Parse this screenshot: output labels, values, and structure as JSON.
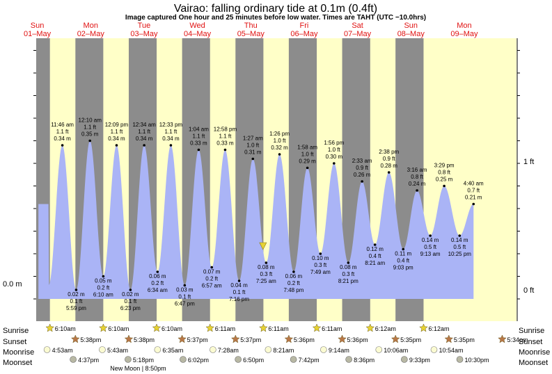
{
  "title": "Vairao: falling  ordinary tide at 0.1m (0.4ft)",
  "subtitle": "Image captured One hour and 25 minutes before low water. Times are TAHT (UTC −10.0hrs)",
  "days": [
    {
      "dow": "Sun",
      "date": "01–May"
    },
    {
      "dow": "Mon",
      "date": "02–May"
    },
    {
      "dow": "Tue",
      "date": "03–May"
    },
    {
      "dow": "Wed",
      "date": "04–May"
    },
    {
      "dow": "Thu",
      "date": "05–May"
    },
    {
      "dow": "Fri",
      "date": "06–May"
    },
    {
      "dow": "Sat",
      "date": "07–May"
    },
    {
      "dow": "Sun",
      "date": "08–May"
    },
    {
      "dow": "Mon",
      "date": "09–May"
    }
  ],
  "axis": {
    "left_label": "0.0 m",
    "right_labels": [
      "1 ft",
      "0 ft"
    ]
  },
  "chart_data": {
    "type": "area",
    "x_unit": "hours from 00:00 Sun 01-May (TAHT)",
    "y_unit": "m",
    "current_level": {
      "time": "falling",
      "height_m": 0.1
    },
    "extremes": [
      {
        "kind": "high",
        "time": "11:46 am",
        "ft": "1.1 ft",
        "m": "0.34 m",
        "t": 11.77,
        "h": 0.34
      },
      {
        "kind": "low",
        "time": "5:59 pm",
        "ft": "0.1 ft",
        "m": "0.02 m",
        "t": 17.98,
        "h": 0.02
      },
      {
        "kind": "high",
        "time": "12:10 am",
        "ft": "1.1 ft",
        "m": "0.35 m",
        "t": 24.17,
        "h": 0.35
      },
      {
        "kind": "low",
        "time": "6:10 am",
        "ft": "0.2 ft",
        "m": "0.05 m",
        "t": 30.17,
        "h": 0.05
      },
      {
        "kind": "high",
        "time": "12:09 pm",
        "ft": "1.1 ft",
        "m": "0.34 m",
        "t": 36.15,
        "h": 0.34
      },
      {
        "kind": "low",
        "time": "6:23 pm",
        "ft": "0.1 ft",
        "m": "0.02 m",
        "t": 42.38,
        "h": 0.02
      },
      {
        "kind": "high",
        "time": "12:34 am",
        "ft": "1.1 ft",
        "m": "0.34 m",
        "t": 48.57,
        "h": 0.34
      },
      {
        "kind": "low",
        "time": "6:34 am",
        "ft": "0.2 ft",
        "m": "0.06 m",
        "t": 54.57,
        "h": 0.06
      },
      {
        "kind": "high",
        "time": "12:33 pm",
        "ft": "1.1 ft",
        "m": "0.34 m",
        "t": 60.55,
        "h": 0.34
      },
      {
        "kind": "low",
        "time": "6:47 pm",
        "ft": "0.1 ft",
        "m": "0.03 m",
        "t": 66.78,
        "h": 0.03
      },
      {
        "kind": "high",
        "time": "1:04 am",
        "ft": "1.1 ft",
        "m": "0.33 m",
        "t": 73.07,
        "h": 0.33
      },
      {
        "kind": "low",
        "time": "6:57 am",
        "ft": "0.2 ft",
        "m": "0.07 m",
        "t": 78.95,
        "h": 0.07
      },
      {
        "kind": "high",
        "time": "12:58 pm",
        "ft": "1.1 ft",
        "m": "0.33 m",
        "t": 84.97,
        "h": 0.33
      },
      {
        "kind": "low",
        "time": "7:16 pm",
        "ft": "0.1 ft",
        "m": "0.04 m",
        "t": 91.27,
        "h": 0.04
      },
      {
        "kind": "high",
        "time": "1:27 am",
        "ft": "1.0 ft",
        "m": "0.31 m",
        "t": 97.45,
        "h": 0.31
      },
      {
        "kind": "low",
        "time": "7:25 am",
        "ft": "0.3 ft",
        "m": "0.08 m",
        "t": 103.42,
        "h": 0.08
      },
      {
        "kind": "high",
        "time": "1:26 pm",
        "ft": "1.0 ft",
        "m": "0.32 m",
        "t": 109.43,
        "h": 0.32
      },
      {
        "kind": "low",
        "time": "7:48 pm",
        "ft": "0.2 ft",
        "m": "0.06 m",
        "t": 115.8,
        "h": 0.06
      },
      {
        "kind": "high",
        "time": "1:58 am",
        "ft": "1.0 ft",
        "m": "0.29 m",
        "t": 121.97,
        "h": 0.29
      },
      {
        "kind": "low",
        "time": "7:49 am",
        "ft": "0.3 ft",
        "m": "0.10 m",
        "t": 127.82,
        "h": 0.1
      },
      {
        "kind": "high",
        "time": "1:56 pm",
        "ft": "1.0 ft",
        "m": "0.30 m",
        "t": 133.93,
        "h": 0.3
      },
      {
        "kind": "low",
        "time": "8:21 pm",
        "ft": "0.3 ft",
        "m": "0.08 m",
        "t": 140.35,
        "h": 0.08
      },
      {
        "kind": "high",
        "time": "2:33 am",
        "ft": "0.9 ft",
        "m": "0.26 m",
        "t": 146.55,
        "h": 0.26
      },
      {
        "kind": "low",
        "time": "8:21 am",
        "ft": "0.4 ft",
        "m": "0.12 m",
        "t": 152.35,
        "h": 0.12
      },
      {
        "kind": "high",
        "time": "2:38 pm",
        "ft": "0.9 ft",
        "m": "0.28 m",
        "t": 158.63,
        "h": 0.28
      },
      {
        "kind": "low",
        "time": "9:03 pm",
        "ft": "0.4 ft",
        "m": "0.11 m",
        "t": 165.05,
        "h": 0.11
      },
      {
        "kind": "high",
        "time": "3:16 am",
        "ft": "0.8 ft",
        "m": "0.24 m",
        "t": 171.27,
        "h": 0.24
      },
      {
        "kind": "low",
        "time": "9:13 am",
        "ft": "0.5 ft",
        "m": "0.14 m",
        "t": 177.22,
        "h": 0.14
      },
      {
        "kind": "high",
        "time": "3:29 pm",
        "ft": "0.8 ft",
        "m": "0.25 m",
        "t": 183.48,
        "h": 0.25
      },
      {
        "kind": "low",
        "time": "10:25 pm",
        "ft": "0.5 ft",
        "m": "0.14 m",
        "t": 190.42,
        "h": 0.14
      },
      {
        "kind": "high",
        "time": "4:40 am",
        "ft": "0.7 ft",
        "m": "0.21 m",
        "t": 196.67,
        "h": 0.21
      }
    ],
    "sunrise": [
      {
        "t": 6.17,
        "label": "6:10am"
      },
      {
        "t": 54.17,
        "label": "6:10am"
      },
      {
        "t": 102.18,
        "label": "6:11am"
      },
      {
        "t": 150.2,
        "label": "6:12am"
      },
      {
        "t": 30.17,
        "label": "6:10am"
      },
      {
        "t": 78.18,
        "label": "6:11am"
      },
      {
        "t": 126.18,
        "label": "6:11am"
      },
      {
        "t": 174.2,
        "label": "6:12am"
      }
    ],
    "sunset": [
      {
        "t": 17.63,
        "label": "5:38pm"
      },
      {
        "t": 41.63,
        "label": "5:38pm"
      },
      {
        "t": 65.62,
        "label": "5:37pm"
      },
      {
        "t": 89.62,
        "label": "5:37pm"
      },
      {
        "t": 113.6,
        "label": "5:36pm"
      },
      {
        "t": 137.6,
        "label": "5:36pm"
      },
      {
        "t": 161.58,
        "label": "5:35pm"
      },
      {
        "t": 185.58,
        "label": "5:35pm"
      },
      {
        "t": 209.57,
        "label": "5:34pm"
      }
    ],
    "moonrise": [
      {
        "t": 4.88,
        "label": "4:53am"
      },
      {
        "t": 29.72,
        "label": "5:43am"
      },
      {
        "t": 54.58,
        "label": "6:35am"
      },
      {
        "t": 79.47,
        "label": "7:28am"
      },
      {
        "t": 104.35,
        "label": "8:21am"
      },
      {
        "t": 129.23,
        "label": "9:14am"
      },
      {
        "t": 154.1,
        "label": "10:06am"
      },
      {
        "t": 178.9,
        "label": "10:54am"
      }
    ],
    "moonset": [
      {
        "t": 16.62,
        "label": "4:37pm"
      },
      {
        "t": 41.3,
        "label": "5:18pm"
      },
      {
        "t": 66.03,
        "label": "6:02pm"
      },
      {
        "t": 90.83,
        "label": "6:50pm"
      },
      {
        "t": 115.7,
        "label": "7:42pm"
      },
      {
        "t": 140.6,
        "label": "8:36pm"
      },
      {
        "t": 165.55,
        "label": "9:33pm"
      },
      {
        "t": 190.5,
        "label": "10:30pm"
      }
    ],
    "moon_phase": {
      "t": 44.83,
      "label": "New Moon | 8:50pm"
    },
    "row_labels": {
      "sunrise": "Sunrise",
      "sunset": "Sunset",
      "moonrise": "Moonrise",
      "moonset": "Moonset"
    }
  },
  "colors": {
    "night": "#8c8c8c",
    "day": "#ffffc8",
    "tide_fill": "#aab4f6",
    "red": "#e01010",
    "sun": "#e6d233",
    "sunset_star": "#b87848",
    "moon_light": "#fbfbd2",
    "moon_dark": "#b8b8a4",
    "marker": "#e6d233"
  }
}
